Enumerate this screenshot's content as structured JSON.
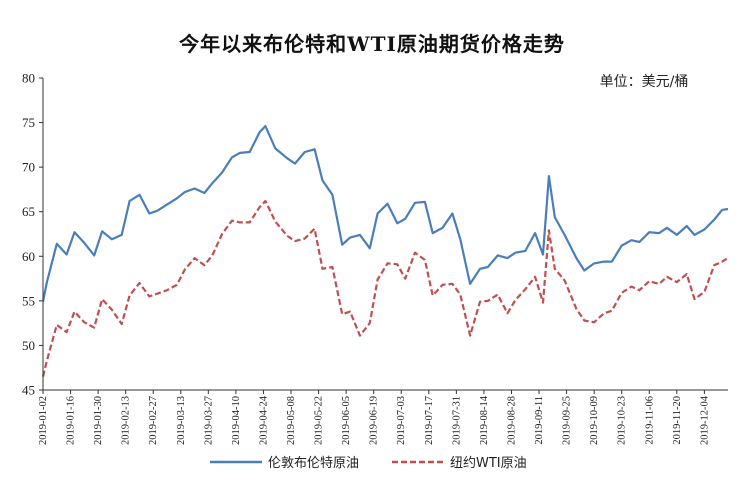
{
  "chart_data": {
    "type": "line",
    "title": "今年以来布伦特和WTI原油期货价格走势",
    "unit_label": "单位：美元/桶",
    "ylim": [
      45,
      80
    ],
    "yticks": [
      45,
      50,
      55,
      60,
      65,
      70,
      75,
      80
    ],
    "x_start": "2019-01-02",
    "x_end": "2019-12-16",
    "xticks": [
      "2019-01-02",
      "2019-01-16",
      "2019-01-30",
      "2019-02-13",
      "2019-02-27",
      "2019-03-13",
      "2019-03-27",
      "2019-04-10",
      "2019-04-24",
      "2019-05-08",
      "2019-05-22",
      "2019-06-05",
      "2019-06-19",
      "2019-07-03",
      "2019-07-17",
      "2019-07-31",
      "2019-08-14",
      "2019-08-28",
      "2019-09-11",
      "2019-09-25",
      "2019-10-09",
      "2019-10-23",
      "2019-11-06",
      "2019-11-20",
      "2019-12-04"
    ],
    "x": [
      "2019-01-02",
      "2019-01-04",
      "2019-01-09",
      "2019-01-14",
      "2019-01-18",
      "2019-01-23",
      "2019-01-28",
      "2019-02-01",
      "2019-02-06",
      "2019-02-11",
      "2019-02-15",
      "2019-02-20",
      "2019-02-25",
      "2019-03-01",
      "2019-03-06",
      "2019-03-11",
      "2019-03-15",
      "2019-03-20",
      "2019-03-25",
      "2019-03-29",
      "2019-04-03",
      "2019-04-08",
      "2019-04-12",
      "2019-04-17",
      "2019-04-22",
      "2019-04-25",
      "2019-04-30",
      "2019-05-06",
      "2019-05-10",
      "2019-05-15",
      "2019-05-20",
      "2019-05-24",
      "2019-05-29",
      "2019-06-03",
      "2019-06-07",
      "2019-06-12",
      "2019-06-17",
      "2019-06-21",
      "2019-06-26",
      "2019-07-01",
      "2019-07-05",
      "2019-07-10",
      "2019-07-15",
      "2019-07-19",
      "2019-07-24",
      "2019-07-29",
      "2019-08-02",
      "2019-08-07",
      "2019-08-12",
      "2019-08-16",
      "2019-08-21",
      "2019-08-26",
      "2019-08-30",
      "2019-09-04",
      "2019-09-09",
      "2019-09-13",
      "2019-09-16",
      "2019-09-19",
      "2019-09-24",
      "2019-09-30",
      "2019-10-04",
      "2019-10-09",
      "2019-10-14",
      "2019-10-18",
      "2019-10-23",
      "2019-10-28",
      "2019-11-01",
      "2019-11-06",
      "2019-11-11",
      "2019-11-15",
      "2019-11-20",
      "2019-11-25",
      "2019-11-29",
      "2019-12-04",
      "2019-12-09",
      "2019-12-13",
      "2019-12-16"
    ],
    "series": [
      {
        "name": "伦敦布伦特原油",
        "color": "#4a7ebb",
        "style": "solid",
        "values": [
          54.9,
          57.1,
          61.4,
          60.2,
          62.7,
          61.5,
          60.1,
          62.8,
          61.9,
          62.4,
          66.2,
          66.9,
          64.8,
          65.1,
          65.8,
          66.5,
          67.2,
          67.6,
          67.1,
          68.2,
          69.4,
          71.1,
          71.6,
          71.7,
          73.9,
          74.6,
          72.1,
          71.0,
          70.4,
          71.7,
          72.0,
          68.5,
          66.9,
          61.3,
          62.1,
          62.4,
          60.9,
          64.8,
          65.9,
          63.7,
          64.2,
          66.0,
          66.1,
          62.6,
          63.2,
          64.8,
          61.9,
          56.9,
          58.6,
          58.8,
          60.1,
          59.8,
          60.4,
          60.6,
          62.6,
          60.2,
          69.0,
          64.4,
          62.4,
          59.8,
          58.4,
          59.2,
          59.4,
          59.4,
          61.2,
          61.8,
          61.6,
          62.7,
          62.6,
          63.2,
          62.4,
          63.4,
          62.4,
          63.0,
          64.1,
          65.2,
          65.3
        ]
      },
      {
        "name": "纽约WTI原油",
        "color": "#c0504d",
        "style": "dashed",
        "values": [
          46.5,
          48.3,
          52.3,
          51.5,
          53.8,
          52.6,
          52.0,
          55.2,
          54.0,
          52.4,
          55.6,
          57.0,
          55.5,
          55.8,
          56.2,
          56.8,
          58.5,
          59.8,
          59.0,
          60.1,
          62.5,
          64.0,
          63.8,
          63.8,
          65.5,
          66.2,
          63.9,
          62.3,
          61.7,
          62.0,
          63.1,
          58.6,
          58.8,
          53.5,
          53.8,
          51.1,
          52.5,
          57.4,
          59.2,
          59.1,
          57.5,
          60.4,
          59.6,
          55.6,
          56.8,
          56.9,
          55.7,
          51.1,
          54.9,
          55.0,
          55.7,
          53.6,
          55.1,
          56.3,
          57.7,
          54.8,
          62.9,
          58.6,
          57.3,
          54.1,
          52.8,
          52.6,
          53.6,
          53.9,
          55.9,
          56.6,
          56.2,
          57.2,
          56.9,
          57.7,
          57.1,
          58.0,
          55.2,
          56.0,
          59.0,
          59.4,
          59.8
        ]
      }
    ],
    "legend_position": "bottom-center"
  }
}
